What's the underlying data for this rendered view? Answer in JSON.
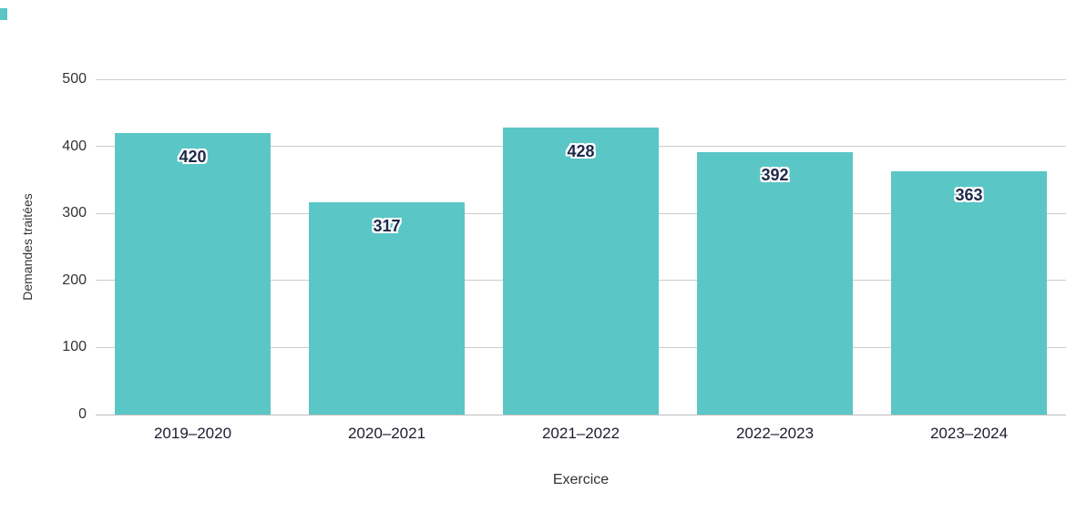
{
  "page": {
    "background": "#ffffff"
  },
  "chart_data": {
    "type": "bar",
    "categories": [
      "2019–2020",
      "2020–2021",
      "2021–2022",
      "2022–2023",
      "2023–2024"
    ],
    "values": [
      420,
      317,
      428,
      392,
      363
    ],
    "title": "",
    "xlabel": "Exercice",
    "ylabel": "Demandes traitées",
    "ylim": [
      0,
      500
    ],
    "yticks": [
      0,
      100,
      200,
      300,
      400,
      500
    ],
    "grid": true,
    "legend": "none",
    "bar_color": "#5BC6C6",
    "value_label_color": "#1E2A4A",
    "gridline_color": "#cccccc"
  }
}
